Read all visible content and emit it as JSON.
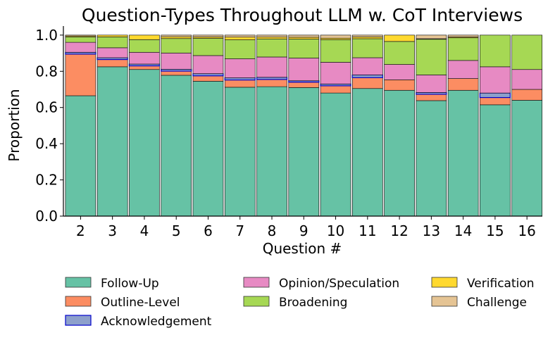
{
  "chart_data": {
    "type": "bar",
    "stacked": true,
    "title": "Question-Types Throughout LLM w. CoT Interviews",
    "xlabel": "Question #",
    "ylabel": "Proportion",
    "ylim": [
      0,
      1.05
    ],
    "yticks": [
      "0.0",
      "0.2",
      "0.4",
      "0.6",
      "0.8",
      "1.0"
    ],
    "categories": [
      "2",
      "3",
      "4",
      "5",
      "6",
      "7",
      "8",
      "9",
      "10",
      "11",
      "12",
      "13",
      "14",
      "15",
      "16"
    ],
    "legend_position": "bottom",
    "series": [
      {
        "name": "Follow-Up",
        "color": "#66c2a5",
        "values": [
          0.665,
          0.825,
          0.81,
          0.778,
          0.745,
          0.712,
          0.715,
          0.71,
          0.68,
          0.705,
          0.695,
          0.638,
          0.695,
          0.615,
          0.64
        ]
      },
      {
        "name": "Outline-Level",
        "color": "#fc8d62",
        "values": [
          0.23,
          0.04,
          0.02,
          0.023,
          0.03,
          0.04,
          0.04,
          0.03,
          0.04,
          0.06,
          0.058,
          0.035,
          0.065,
          0.04,
          0.06
        ]
      },
      {
        "name": "Acknowledgement",
        "color": "#8da0cb",
        "values": [
          0.01,
          0.01,
          0.01,
          0.01,
          0.012,
          0.012,
          0.012,
          0.008,
          0.01,
          0.015,
          0.0,
          0.01,
          0.0,
          0.025,
          0.0
        ]
      },
      {
        "name": "Opinion/Speculation",
        "color": "#e78ac3",
        "values": [
          0.055,
          0.055,
          0.065,
          0.09,
          0.1,
          0.105,
          0.112,
          0.125,
          0.12,
          0.095,
          0.085,
          0.097,
          0.1,
          0.145,
          0.11
        ]
      },
      {
        "name": "Broadening",
        "color": "#a6d854",
        "values": [
          0.03,
          0.06,
          0.07,
          0.08,
          0.095,
          0.105,
          0.1,
          0.105,
          0.125,
          0.105,
          0.127,
          0.197,
          0.125,
          0.175,
          0.19
        ]
      },
      {
        "name": "Verification",
        "color": "#ffd92f",
        "values": [
          0.005,
          0.01,
          0.025,
          0.01,
          0.008,
          0.015,
          0.01,
          0.01,
          0.008,
          0.01,
          0.035,
          0.003,
          0.005,
          0.0,
          0.0
        ]
      },
      {
        "name": "Challenge",
        "color": "#e5c494",
        "values": [
          0.005,
          0.0,
          0.0,
          0.009,
          0.01,
          0.011,
          0.011,
          0.012,
          0.017,
          0.01,
          0.0,
          0.02,
          0.01,
          0.0,
          0.0
        ]
      }
    ]
  }
}
